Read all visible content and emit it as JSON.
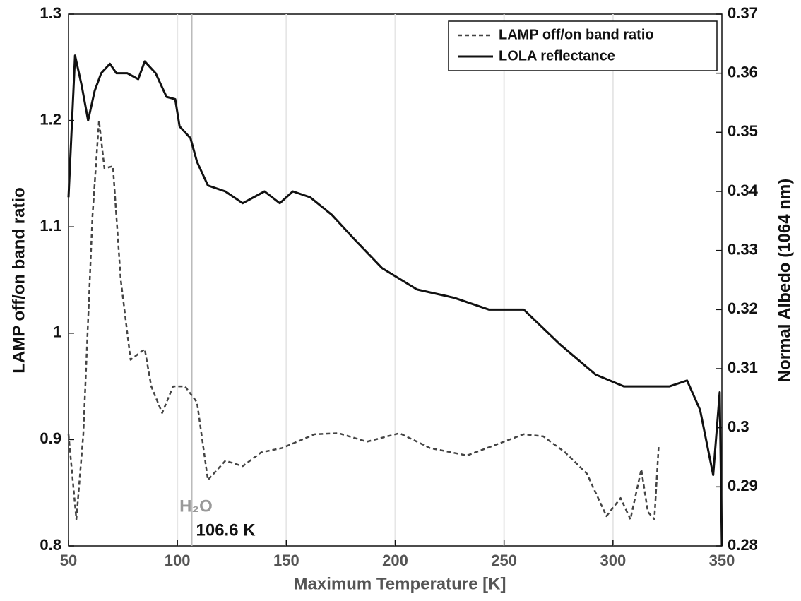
{
  "chart_data": {
    "type": "line",
    "x_label": "Maximum Temperature [K]",
    "y_label": "LAMP off/on band ratio",
    "y2_label": "Normal Albedo (1064 nm)",
    "xlim": [
      50,
      350
    ],
    "xticks": [
      50,
      100,
      150,
      200,
      250,
      300,
      350
    ],
    "ylim": [
      0.8,
      1.3
    ],
    "yticks": [
      0.8,
      0.9,
      1,
      1.1,
      1.2,
      1.3
    ],
    "y2lim": [
      0.28,
      0.37
    ],
    "y2ticks": [
      0.28,
      0.29,
      0.3,
      0.31,
      0.32,
      0.33,
      0.34,
      0.35,
      0.36,
      0.37
    ],
    "grid": true,
    "legend": "upper right",
    "annotation": {
      "x": 106.6,
      "species": "H₂O",
      "label": "106.6 K"
    },
    "series": [
      {
        "name": "LAMP off/on band ratio",
        "color": "#444444",
        "dash": true,
        "x": [
          50,
          53.6,
          56.8,
          61,
          64,
          66.5,
          70.4,
          74,
          78.5,
          85,
          88,
          93,
          98,
          103.5,
          109,
          114,
          122,
          130,
          138.5,
          148,
          155,
          163,
          174,
          187,
          202,
          216,
          233,
          246,
          259,
          268,
          278,
          288,
          297,
          303.5,
          308,
          313,
          316,
          319,
          321
        ],
        "values": [
          0.905,
          0.825,
          0.905,
          1.11,
          1.2,
          1.155,
          1.157,
          1.05,
          0.975,
          0.985,
          0.95,
          0.925,
          0.95,
          0.95,
          0.935,
          0.862,
          0.88,
          0.875,
          0.888,
          0.892,
          0.898,
          0.905,
          0.906,
          0.898,
          0.906,
          0.892,
          0.885,
          0.895,
          0.905,
          0.903,
          0.888,
          0.868,
          0.828,
          0.845,
          0.825,
          0.872,
          0.832,
          0.825,
          0.895
        ]
      },
      {
        "name": "LOLA reflectance",
        "color": "#111111",
        "dash": false,
        "axis": "y2",
        "x": [
          50,
          53,
          56,
          59,
          62,
          65,
          69,
          72,
          77,
          82,
          85,
          90,
          95,
          99,
          101,
          106,
          109,
          114,
          122,
          130,
          140,
          147,
          153,
          161,
          171,
          181,
          194,
          210,
          227,
          243,
          259,
          276,
          292,
          305,
          318,
          326,
          334,
          340,
          346,
          349,
          350
        ],
        "values": [
          0.339,
          0.363,
          0.358,
          0.352,
          0.357,
          0.36,
          0.3616,
          0.36,
          0.36,
          0.359,
          0.362,
          0.36,
          0.356,
          0.3556,
          0.351,
          0.349,
          0.345,
          0.341,
          0.34,
          0.338,
          0.34,
          0.338,
          0.34,
          0.339,
          0.336,
          0.332,
          0.327,
          0.3234,
          0.322,
          0.32,
          0.32,
          0.314,
          0.309,
          0.307,
          0.307,
          0.307,
          0.308,
          0.303,
          0.292,
          0.306,
          0.28
        ]
      }
    ]
  }
}
